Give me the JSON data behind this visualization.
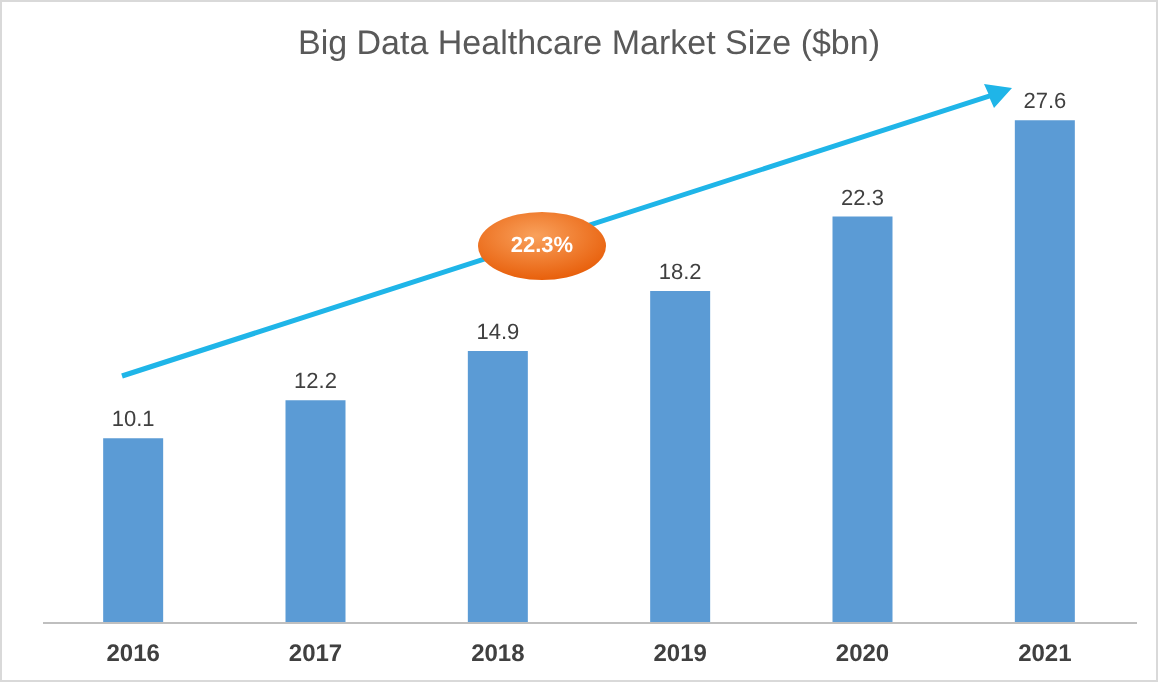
{
  "chart_data": {
    "type": "bar",
    "title": "Big Data Healthcare Market Size ($bn)",
    "categories": [
      "2016",
      "2017",
      "2018",
      "2019",
      "2020",
      "2021"
    ],
    "values": [
      10.1,
      12.2,
      14.9,
      18.2,
      22.3,
      27.6
    ],
    "color": "#5b9bd5",
    "data_labels": true,
    "tick_labels": "x",
    "annotations": [
      "22.3%"
    ]
  }
}
